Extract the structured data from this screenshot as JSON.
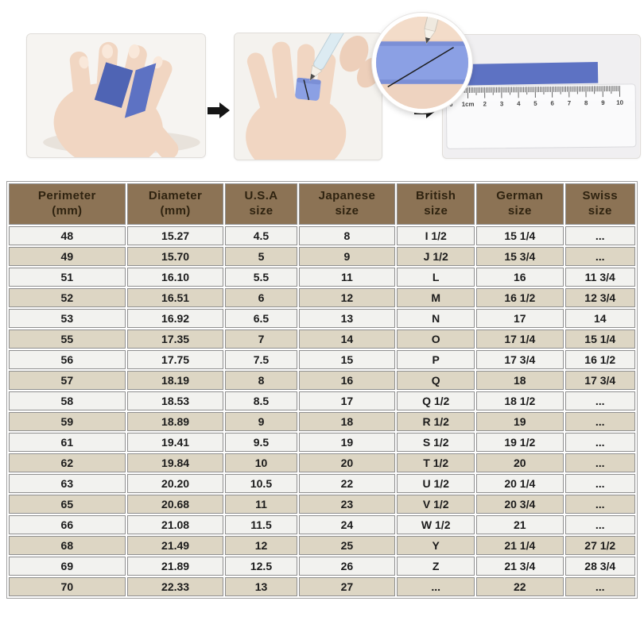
{
  "colors": {
    "header_bg": "#8c7355",
    "header_text": "#2f2310",
    "row_light": "#f2f2ef",
    "row_beige": "#ddd6c4",
    "cell_border": "#8f8f8f",
    "cell_text": "#1b1b1b",
    "strip_blue": "#5d72c3",
    "band_blue": "#8ba0e4",
    "arrow_black": "#151515"
  },
  "icons": {
    "arrow_right": "➡"
  },
  "instructions": {
    "steps": [
      {
        "name": "place-paper-strips-on-hand"
      },
      {
        "name": "wrap-strip-around-finger-and-mark"
      },
      {
        "name": "measure-marked-strip-with-ruler"
      }
    ],
    "ruler": {
      "tick_labels": [
        "0",
        "1cm",
        "2",
        "3",
        "4",
        "5",
        "6",
        "7",
        "8",
        "9",
        "10"
      ]
    }
  },
  "chart_data": {
    "type": "table",
    "columns": [
      "Perimeter\n(mm)",
      "Diameter\n(mm)",
      "U.S.A\nsize",
      "Japanese\nsize",
      "British\nsize",
      "German\nsize",
      "Swiss\nsize"
    ],
    "rows": [
      [
        "48",
        "15.27",
        "4.5",
        "8",
        "I 1/2",
        "15 1/4",
        "..."
      ],
      [
        "49",
        "15.70",
        "5",
        "9",
        "J 1/2",
        "15 3/4",
        "..."
      ],
      [
        "51",
        "16.10",
        "5.5",
        "11",
        "L",
        "16",
        "11 3/4"
      ],
      [
        "52",
        "16.51",
        "6",
        "12",
        "M",
        "16 1/2",
        "12 3/4"
      ],
      [
        "53",
        "16.92",
        "6.5",
        "13",
        "N",
        "17",
        "14"
      ],
      [
        "55",
        "17.35",
        "7",
        "14",
        "O",
        "17 1/4",
        "15 1/4"
      ],
      [
        "56",
        "17.75",
        "7.5",
        "15",
        "P",
        "17 3/4",
        "16 1/2"
      ],
      [
        "57",
        "18.19",
        "8",
        "16",
        "Q",
        "18",
        "17 3/4"
      ],
      [
        "58",
        "18.53",
        "8.5",
        "17",
        "Q 1/2",
        "18 1/2",
        "..."
      ],
      [
        "59",
        "18.89",
        "9",
        "18",
        "R 1/2",
        "19",
        "..."
      ],
      [
        "61",
        "19.41",
        "9.5",
        "19",
        "S 1/2",
        "19 1/2",
        "..."
      ],
      [
        "62",
        "19.84",
        "10",
        "20",
        "T 1/2",
        "20",
        "..."
      ],
      [
        "63",
        "20.20",
        "10.5",
        "22",
        "U 1/2",
        "20 1/4",
        "..."
      ],
      [
        "65",
        "20.68",
        "11",
        "23",
        "V 1/2",
        "20 3/4",
        "..."
      ],
      [
        "66",
        "21.08",
        "11.5",
        "24",
        "W 1/2",
        "21",
        "..."
      ],
      [
        "68",
        "21.49",
        "12",
        "25",
        "Y",
        "21 1/4",
        "27 1/2"
      ],
      [
        "69",
        "21.89",
        "12.5",
        "26",
        "Z",
        "21 3/4",
        "28 3/4"
      ],
      [
        "70",
        "22.33",
        "13",
        "27",
        "...",
        "22",
        "..."
      ]
    ]
  }
}
